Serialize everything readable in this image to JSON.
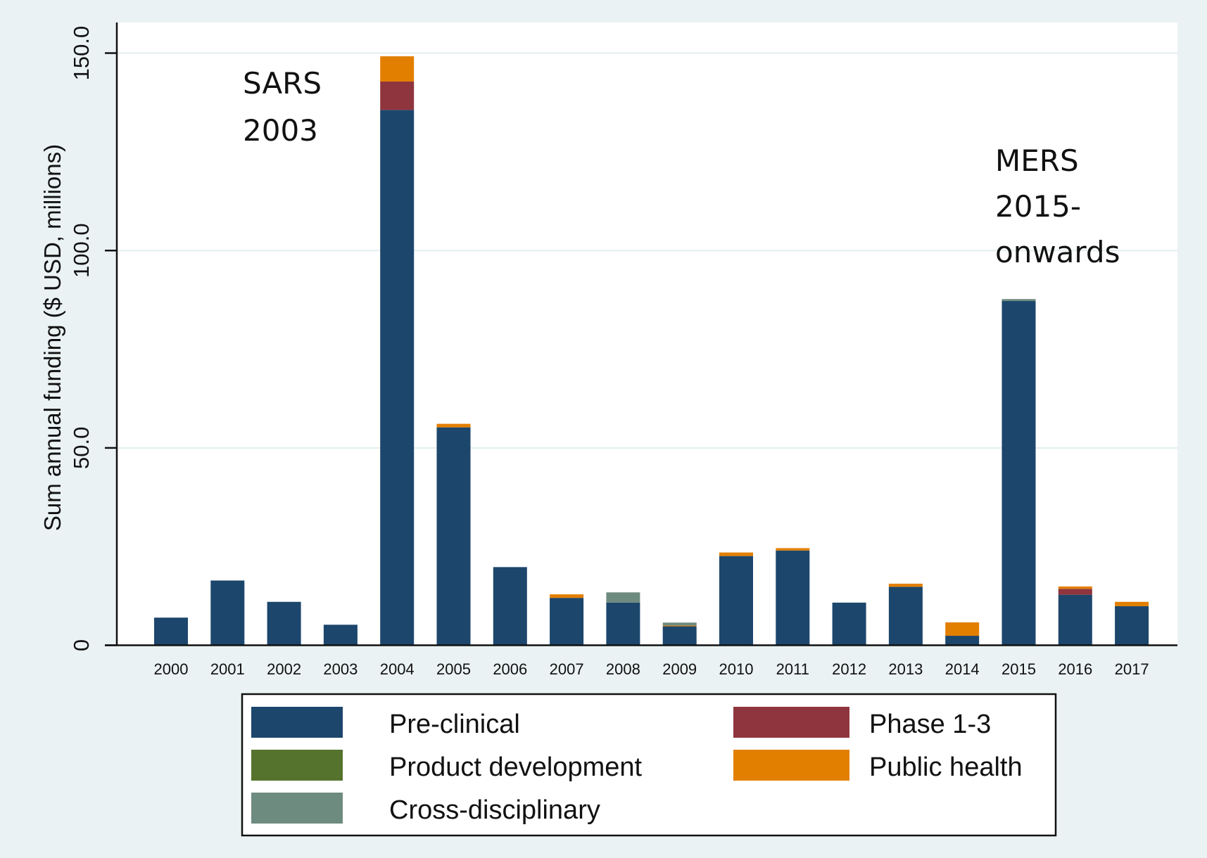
{
  "chart_data": {
    "type": "bar",
    "stacked": true,
    "title": "",
    "xlabel": "",
    "ylabel": "Sum annual funding ($ USD, millions)",
    "ylim": [
      0,
      157
    ],
    "yticks": [
      {
        "value": 0,
        "label": "0"
      },
      {
        "value": 50,
        "label": "50.0"
      },
      {
        "value": 100,
        "label": "100.0"
      },
      {
        "value": 150,
        "label": "150.0"
      }
    ],
    "grid": true,
    "categories": [
      "2000",
      "2001",
      "2002",
      "2003",
      "2004",
      "2005",
      "2006",
      "2007",
      "2008",
      "2009",
      "2010",
      "2011",
      "2012",
      "2013",
      "2014",
      "2015",
      "2016",
      "2017"
    ],
    "series": [
      {
        "name": "Pre-clinical",
        "color": "#1c466c",
        "values": [
          7.0,
          16.4,
          11.0,
          5.2,
          135.6,
          55.2,
          19.8,
          12.0,
          10.8,
          4.8,
          22.6,
          24.0,
          10.8,
          14.8,
          2.4,
          87.2,
          12.8,
          9.9
        ]
      },
      {
        "name": "Phase 1-3",
        "color": "#8f353e",
        "values": [
          0,
          0,
          0,
          0,
          7.2,
          0,
          0,
          0,
          0,
          0,
          0,
          0,
          0,
          0,
          0,
          0,
          1.5,
          0
        ]
      },
      {
        "name": "Product development",
        "color": "#56732e",
        "values": [
          0,
          0,
          0,
          0,
          0,
          0,
          0,
          0,
          0,
          0,
          0,
          0,
          0,
          0,
          0,
          0,
          0,
          0
        ]
      },
      {
        "name": "Public health",
        "color": "#e37f00",
        "values": [
          0,
          0,
          0,
          0,
          6.4,
          0.9,
          0,
          0.9,
          0,
          0.2,
          0.9,
          0.6,
          0,
          0.8,
          3.4,
          0,
          0.6,
          1.1
        ]
      },
      {
        "name": "Cross-disciplinary",
        "color": "#6e8b80",
        "values": [
          0,
          0,
          0,
          0,
          0,
          0,
          0,
          0,
          2.6,
          0.75,
          0,
          0,
          0,
          0,
          0,
          0.5,
          0,
          0
        ]
      }
    ],
    "stack_order": [
      "Pre-clinical",
      "Phase 1-3",
      "Product development",
      "Public health",
      "Cross-disciplinary"
    ],
    "legend": {
      "placement": "bottom",
      "columns": [
        [
          "Pre-clinical",
          "Product development",
          "Cross-disciplinary"
        ],
        [
          "Phase 1-3",
          "Public health"
        ]
      ]
    },
    "annotations": [
      {
        "lines": [
          "SARS",
          "2003"
        ],
        "near_category": "2003-2004",
        "near_value": 145
      },
      {
        "lines": [
          "MERS",
          "2015-",
          "onwards"
        ],
        "near_category": "2015",
        "near_value": 120
      }
    ]
  }
}
